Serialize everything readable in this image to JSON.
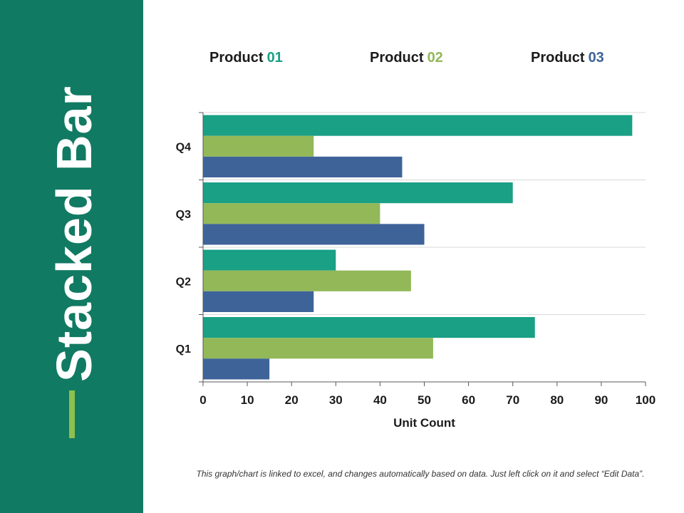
{
  "sidebar": {
    "title": "Stacked Bar"
  },
  "legend": [
    {
      "name": "Product",
      "number": "01",
      "color": "#19a085"
    },
    {
      "name": "Product",
      "number": "02",
      "color": "#92b858"
    },
    {
      "name": "Product",
      "number": "03",
      "color": "#3e6399"
    }
  ],
  "footer": {
    "note": "This graph/chart is linked to excel, and changes automatically based on data. Just left click on it and select “Edit Data”."
  },
  "chart_data": {
    "type": "bar",
    "orientation": "horizontal",
    "title": "",
    "xlabel": "Unit Count",
    "ylabel": "",
    "xlim": [
      0,
      100
    ],
    "xticks": [
      0,
      10,
      20,
      30,
      40,
      50,
      60,
      70,
      80,
      90,
      100
    ],
    "categories": [
      "Q1",
      "Q2",
      "Q3",
      "Q4"
    ],
    "series": [
      {
        "name": "Product 01",
        "color": "#19a085",
        "values": [
          75,
          30,
          70,
          97
        ]
      },
      {
        "name": "Product 02",
        "color": "#92b858",
        "values": [
          52,
          47,
          40,
          25
        ]
      },
      {
        "name": "Product 03",
        "color": "#3e6399",
        "values": [
          15,
          25,
          50,
          45
        ]
      }
    ],
    "legend_position": "top",
    "grid": true
  }
}
